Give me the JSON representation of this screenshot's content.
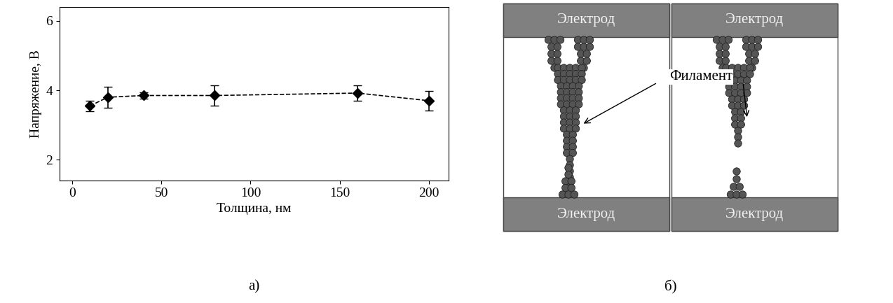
{
  "chart_data": {
    "type": "line",
    "xlabel": "Толщина, нм",
    "ylabel": "Напряжение, В",
    "x": [
      10,
      20,
      40,
      80,
      160,
      200
    ],
    "values": [
      3.55,
      3.8,
      3.85,
      3.85,
      3.92,
      3.7
    ],
    "errors": [
      0.15,
      0.3,
      0.1,
      0.3,
      0.22,
      0.28
    ],
    "xlim": [
      -7,
      211
    ],
    "ylim": [
      1.4,
      6.4
    ],
    "xticks": [
      0,
      50,
      100,
      150,
      200
    ],
    "yticks": [
      2,
      4,
      6
    ],
    "color": "#000000",
    "marker": "diamond",
    "line_style": "dashed",
    "annotations": [
      "а)"
    ]
  },
  "diagram": {
    "caption": "б)",
    "cells": [
      {
        "top": "Электрод",
        "bottom": "Электрод"
      },
      {
        "top": "Электрод",
        "bottom": "Электрод"
      }
    ],
    "pointer": "Филамент"
  }
}
